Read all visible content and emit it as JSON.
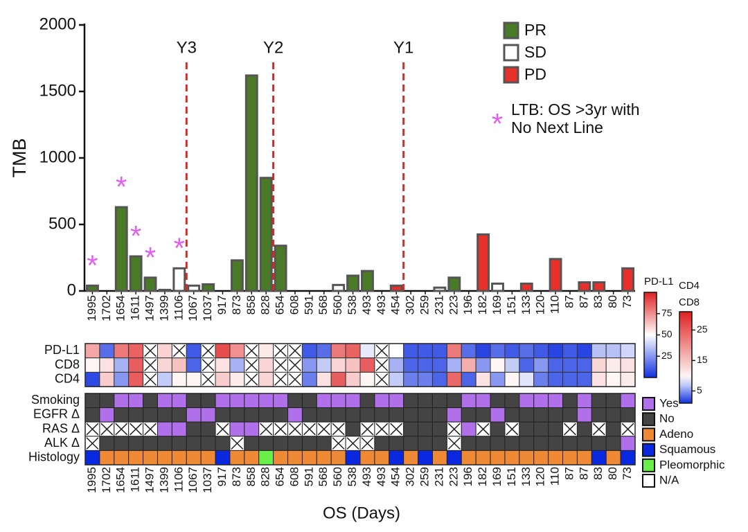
{
  "chart_data": {
    "type": "bar",
    "y_label": "TMB",
    "x_label": "OS (Days)",
    "categories": [
      "1995",
      "1702",
      "1654",
      "1611",
      "1497",
      "1399",
      "1106",
      "1067",
      "1037",
      "917",
      "873",
      "858",
      "828",
      "654",
      "608",
      "591",
      "568",
      "560",
      "538",
      "493",
      "493",
      "454",
      "302",
      "259",
      "231",
      "223",
      "196",
      "182",
      "169",
      "151",
      "133",
      "120",
      "110",
      "87",
      "87",
      "83",
      "80",
      "73"
    ],
    "series": [
      {
        "name": "PR",
        "color": "#4a7a26",
        "values": [
          40,
          null,
          630,
          260,
          100,
          null,
          null,
          null,
          50,
          null,
          230,
          1620,
          850,
          340,
          null,
          null,
          null,
          null,
          115,
          150,
          null,
          null,
          null,
          null,
          null,
          100,
          null,
          null,
          null,
          null,
          null,
          null,
          null,
          null,
          null,
          null,
          null,
          null
        ]
      },
      {
        "name": "SD",
        "color": "#ffffff",
        "values": [
          null,
          null,
          null,
          null,
          null,
          8,
          170,
          40,
          null,
          null,
          null,
          null,
          null,
          null,
          null,
          null,
          null,
          45,
          null,
          null,
          null,
          null,
          null,
          null,
          25,
          null,
          null,
          null,
          55,
          null,
          null,
          null,
          null,
          null,
          null,
          null,
          null,
          null
        ]
      },
      {
        "name": "PD",
        "color": "#e8302a",
        "values": [
          null,
          null,
          null,
          null,
          null,
          null,
          null,
          null,
          null,
          null,
          null,
          null,
          null,
          null,
          null,
          null,
          null,
          null,
          null,
          null,
          null,
          40,
          null,
          null,
          null,
          null,
          null,
          425,
          null,
          null,
          55,
          null,
          240,
          null,
          65,
          65,
          null,
          170
        ]
      }
    ],
    "ylim": [
      0,
      2000
    ],
    "yticks": [
      0,
      500,
      1000,
      1500,
      2000
    ],
    "reference_lines": [
      {
        "label": "Y3",
        "before_category": 7
      },
      {
        "label": "Y2",
        "before_category": 13
      },
      {
        "label": "Y1",
        "before_category": 22
      }
    ],
    "ltb": {
      "marker": "*",
      "label": [
        "LTB: OS >3yr with",
        "No Next Line"
      ],
      "color": "#e060f0",
      "category_indices": [
        0,
        2,
        3,
        4,
        6
      ]
    },
    "heatmap": {
      "rows": [
        {
          "name": "PD-L1",
          "scale": "pdl1",
          "values": [
            70,
            15,
            80,
            85,
            null,
            60,
            null,
            10,
            null,
            90,
            75,
            null,
            55,
            null,
            null,
            10,
            15,
            80,
            85,
            45,
            null,
            50,
            10,
            10,
            10,
            80,
            15,
            5,
            15,
            10,
            15,
            10,
            5,
            10,
            5,
            35,
            35,
            40
          ]
        },
        {
          "name": "CD8",
          "scale": "cd",
          "values": [
            10,
            12,
            6,
            25,
            null,
            13,
            15,
            3,
            null,
            12,
            6,
            null,
            13,
            null,
            null,
            5,
            7,
            13,
            15,
            25,
            null,
            6,
            3,
            3,
            3,
            6,
            17,
            5,
            10,
            7,
            3,
            5,
            3,
            3,
            3,
            13,
            11,
            12
          ]
        },
        {
          "name": "CD4",
          "scale": "cd",
          "values": [
            2,
            14,
            5,
            25,
            null,
            7,
            10,
            10,
            null,
            14,
            11,
            null,
            13,
            null,
            null,
            4,
            12,
            25,
            14,
            10,
            null,
            7,
            4,
            4,
            3,
            24,
            3,
            12,
            5,
            10,
            8,
            4,
            3,
            3,
            3,
            12,
            10,
            11
          ]
        }
      ],
      "scales": {
        "pdl1": {
          "titles": [
            "PD-L1"
          ],
          "lim": [
            0,
            100
          ],
          "center": 50,
          "ticks": [
            25,
            50,
            75
          ]
        },
        "cd": {
          "titles": [
            "CD4",
            "CD8"
          ],
          "lim": [
            1,
            31
          ],
          "center": 9,
          "ticks": [
            5,
            15,
            25
          ]
        }
      },
      "low_color": "#1030e0",
      "mid_color": "#ffffff",
      "high_color": "#e02020"
    },
    "categorical": {
      "rows": [
        {
          "name": "Smoking",
          "values": [
            "No",
            "No",
            "Yes",
            "Yes",
            "No",
            "Yes",
            "Yes",
            "No",
            "No",
            "Yes",
            "Yes",
            "Yes",
            "Yes",
            "Yes",
            "No",
            "No",
            "Yes",
            "Yes",
            "Yes",
            "No",
            "Yes",
            "Yes",
            "No",
            "No",
            "No",
            "No",
            "Yes",
            "Yes",
            "No",
            "No",
            "Yes",
            "Yes",
            "Yes",
            "No",
            "Yes",
            "No",
            "No",
            "Yes"
          ]
        },
        {
          "name": "EGFR Δ",
          "values": [
            "No",
            "Yes",
            "No",
            "No",
            "No",
            "No",
            "No",
            "Yes",
            "Yes",
            "No",
            "No",
            "No",
            "No",
            "No",
            "Yes",
            "No",
            "No",
            "No",
            "No",
            "No",
            "No",
            "No",
            "No",
            "No",
            "No",
            "Yes",
            "No",
            "No",
            "Yes",
            "No",
            "No",
            "No",
            "No",
            "No",
            "Yes",
            "No",
            "No",
            "No"
          ]
        },
        {
          "name": "RAS Δ",
          "values": [
            "N/A",
            "N/A",
            "N/A",
            "N/A",
            "N/A",
            "Yes",
            "Yes",
            "No",
            "No",
            "N/A",
            "Yes",
            "Yes",
            "N/A",
            "N/A",
            "N/A",
            "N/A",
            "N/A",
            "N/A",
            "No",
            "N/A",
            "N/A",
            "N/A",
            "No",
            "No",
            "No",
            "N/A",
            "Yes",
            "N/A",
            "No",
            "N/A",
            "No",
            "No",
            "No",
            "N/A",
            "No",
            "N/A",
            "No",
            "N/A"
          ]
        },
        {
          "name": "ALK Δ",
          "values": [
            "N/A",
            "No",
            "No",
            "No",
            "No",
            "No",
            "No",
            "No",
            "No",
            "No",
            "N/A",
            "No",
            "No",
            "No",
            "No",
            "No",
            "No",
            "N/A",
            "N/A",
            "N/A",
            "No",
            "No",
            "No",
            "No",
            "No",
            "N/A",
            "No",
            "No",
            "No",
            "No",
            "No",
            "No",
            "No",
            "No",
            "No",
            "No",
            "No",
            "Yes"
          ]
        },
        {
          "name": "Histology",
          "values": [
            "Squamous",
            "Adeno",
            "Adeno",
            "Adeno",
            "Adeno",
            "Adeno",
            "Adeno",
            "Adeno",
            "Adeno",
            "Squamous",
            "Adeno",
            "Adeno",
            "Pleomorphic",
            "Adeno",
            "Adeno",
            "Adeno",
            "Adeno",
            "Adeno",
            "Squamous",
            "Adeno",
            "Adeno",
            "Squamous",
            "Adeno",
            "Squamous",
            "Adeno",
            "Squamous",
            "Adeno",
            "Adeno",
            "Adeno",
            "Adeno",
            "Adeno",
            "Adeno",
            "Adeno",
            "Adeno",
            "Adeno",
            "Squamous",
            "Adeno",
            "Squamous"
          ]
        }
      ],
      "legend": [
        {
          "name": "Yes",
          "color": "#b070ea"
        },
        {
          "name": "No",
          "color": "#444444"
        },
        {
          "name": "Adeno",
          "color": "#ee8a36"
        },
        {
          "name": "Squamous",
          "color": "#0a28e0"
        },
        {
          "name": "Pleomorphic",
          "color": "#6aee48"
        },
        {
          "name": "N/A",
          "color": "#ffffff"
        }
      ]
    }
  }
}
